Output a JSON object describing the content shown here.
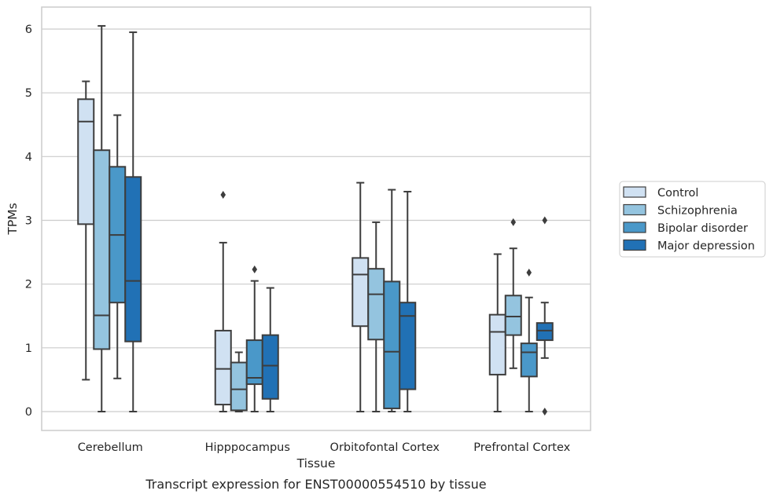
{
  "chart_data": {
    "type": "box",
    "xlabel": "Tissue",
    "ylabel": "TPMs",
    "caption": "Transcript expression for ENST00000554510 by tissue",
    "ylim": [
      -0.3,
      6.35
    ],
    "yticks": [
      0,
      1,
      2,
      3,
      4,
      5,
      6
    ],
    "grid": true,
    "legend_position": "right",
    "categories": [
      "Cerebellum",
      "Hipppocampus",
      "Orbitofontal Cortex",
      "Prefrontal Cortex"
    ],
    "series": [
      {
        "name": "Control",
        "color": "#d0e1f2",
        "boxes": [
          {
            "whislo": 0.5,
            "q1": 2.94,
            "med": 4.55,
            "q3": 4.9,
            "whishi": 5.18,
            "fliers": []
          },
          {
            "whislo": 0.0,
            "q1": 0.11,
            "med": 0.67,
            "q3": 1.27,
            "whishi": 2.65,
            "fliers": [
              3.4
            ]
          },
          {
            "whislo": 0.0,
            "q1": 1.34,
            "med": 2.15,
            "q3": 2.41,
            "whishi": 3.59,
            "fliers": []
          },
          {
            "whislo": 0.0,
            "q1": 0.58,
            "med": 1.25,
            "q3": 1.52,
            "whishi": 2.47,
            "fliers": []
          }
        ]
      },
      {
        "name": "Schizophrenia",
        "color": "#94c4df",
        "boxes": [
          {
            "whislo": 0.0,
            "q1": 0.98,
            "med": 1.51,
            "q3": 4.1,
            "whishi": 6.05,
            "fliers": []
          },
          {
            "whislo": 0.0,
            "q1": 0.02,
            "med": 0.35,
            "q3": 0.77,
            "whishi": 0.93,
            "fliers": []
          },
          {
            "whislo": 0.0,
            "q1": 1.13,
            "med": 1.84,
            "q3": 2.24,
            "whishi": 2.97,
            "fliers": []
          },
          {
            "whislo": 0.68,
            "q1": 1.2,
            "med": 1.49,
            "q3": 1.82,
            "whishi": 2.56,
            "fliers": [
              2.97
            ]
          }
        ]
      },
      {
        "name": "Bipolar disorder",
        "color": "#4a98c9",
        "boxes": [
          {
            "whislo": 0.52,
            "q1": 1.71,
            "med": 2.77,
            "q3": 3.84,
            "whishi": 4.65,
            "fliers": []
          },
          {
            "whislo": 0.0,
            "q1": 0.43,
            "med": 0.53,
            "q3": 1.12,
            "whishi": 2.05,
            "fliers": [
              2.23
            ]
          },
          {
            "whislo": 0.0,
            "q1": 0.05,
            "med": 0.94,
            "q3": 2.04,
            "whishi": 3.48,
            "fliers": []
          },
          {
            "whislo": 0.0,
            "q1": 0.55,
            "med": 0.93,
            "q3": 1.07,
            "whishi": 1.79,
            "fliers": [
              2.18
            ]
          }
        ]
      },
      {
        "name": "Major depression",
        "color": "#2171b5",
        "boxes": [
          {
            "whislo": 0.0,
            "q1": 1.1,
            "med": 2.05,
            "q3": 3.68,
            "whishi": 5.95,
            "fliers": []
          },
          {
            "whislo": 0.0,
            "q1": 0.2,
            "med": 0.72,
            "q3": 1.2,
            "whishi": 1.94,
            "fliers": []
          },
          {
            "whislo": 0.0,
            "q1": 0.35,
            "med": 1.5,
            "q3": 1.71,
            "whishi": 3.45,
            "fliers": []
          },
          {
            "whislo": 0.84,
            "q1": 1.12,
            "med": 1.27,
            "q3": 1.39,
            "whishi": 1.71,
            "fliers": [
              0.0,
              3.0
            ]
          }
        ]
      }
    ]
  }
}
